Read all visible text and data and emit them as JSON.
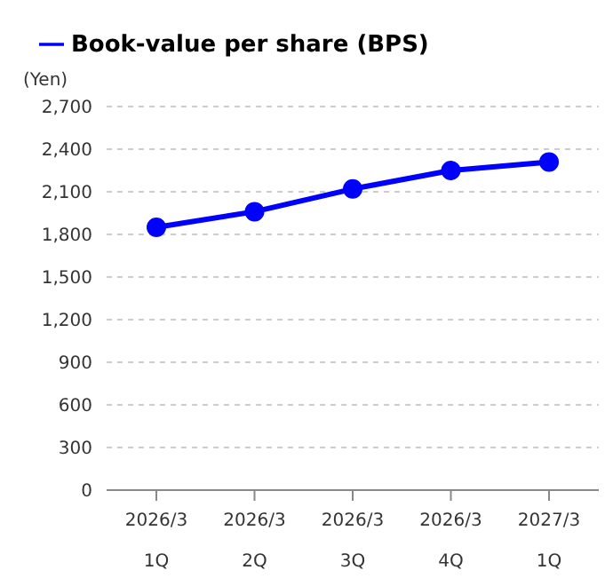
{
  "chart_data": {
    "type": "line",
    "ylabel": "(Yen)",
    "categories": [
      "2026/3\n1Q",
      "2026/3\n2Q",
      "2026/3\n3Q",
      "2026/3\n4Q",
      "2027/3\n1Q"
    ],
    "series": [
      {
        "name": "Book-value per share (BPS)",
        "color": "#0000ff",
        "values": [
          1850,
          1960,
          2120,
          2250,
          2310
        ]
      }
    ],
    "ylim": [
      0,
      2700
    ],
    "yticks": [
      0,
      300,
      600,
      900,
      {
        "value": 1200,
        "label": "1,200"
      },
      {
        "value": 1500,
        "label": "1,500"
      },
      {
        "value": 1800,
        "label": "1,800"
      },
      {
        "value": 2100,
        "label": "2,100"
      },
      {
        "value": 2400,
        "label": "2,400"
      },
      {
        "value": 2700,
        "label": "2,700"
      }
    ],
    "grid": "y",
    "legend": "top left",
    "marker": "circle",
    "line_style": "solid"
  }
}
